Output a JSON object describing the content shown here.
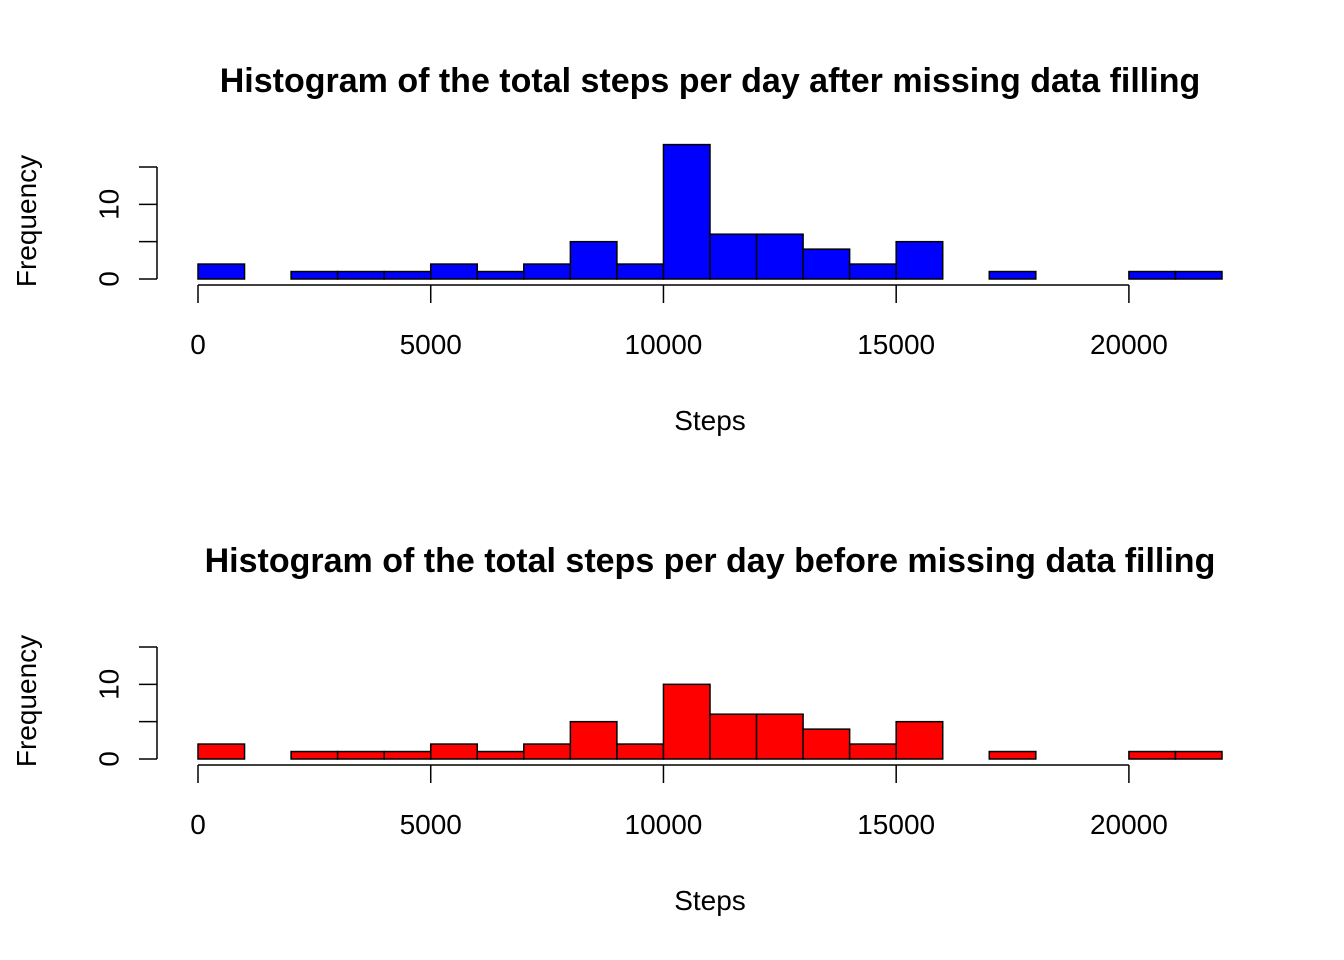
{
  "chart_data": [
    {
      "type": "bar",
      "title": "Histogram of the total steps per day after missing data filling",
      "xlabel": "Steps",
      "ylabel": "Frequency",
      "fill_color": "#0000ff",
      "bin_width": 1000,
      "bin_starts": [
        0,
        1000,
        2000,
        3000,
        4000,
        5000,
        6000,
        7000,
        8000,
        9000,
        10000,
        11000,
        12000,
        13000,
        14000,
        15000,
        16000,
        17000,
        18000,
        19000,
        20000,
        21000
      ],
      "values": [
        2,
        0,
        1,
        1,
        1,
        2,
        1,
        2,
        5,
        2,
        18,
        6,
        6,
        4,
        2,
        5,
        0,
        1,
        0,
        0,
        1,
        1
      ],
      "xlim": [
        0,
        22000
      ],
      "ylim": [
        0,
        15
      ],
      "x_ticks": [
        "0",
        "5000",
        "10000",
        "15000",
        "20000"
      ],
      "y_ticks": [
        "0",
        "10"
      ]
    },
    {
      "type": "bar",
      "title": "Histogram of the total steps per day before missing data filling",
      "xlabel": "Steps",
      "ylabel": "Frequency",
      "fill_color": "#ff0000",
      "bin_width": 1000,
      "bin_starts": [
        0,
        1000,
        2000,
        3000,
        4000,
        5000,
        6000,
        7000,
        8000,
        9000,
        10000,
        11000,
        12000,
        13000,
        14000,
        15000,
        16000,
        17000,
        18000,
        19000,
        20000,
        21000
      ],
      "values": [
        2,
        0,
        1,
        1,
        1,
        2,
        1,
        2,
        5,
        2,
        10,
        6,
        6,
        4,
        2,
        5,
        0,
        1,
        0,
        0,
        1,
        1
      ],
      "xlim": [
        0,
        22000
      ],
      "ylim": [
        0,
        15
      ],
      "x_ticks": [
        "0",
        "5000",
        "10000",
        "15000",
        "20000"
      ],
      "y_ticks": [
        "0",
        "10"
      ]
    }
  ]
}
